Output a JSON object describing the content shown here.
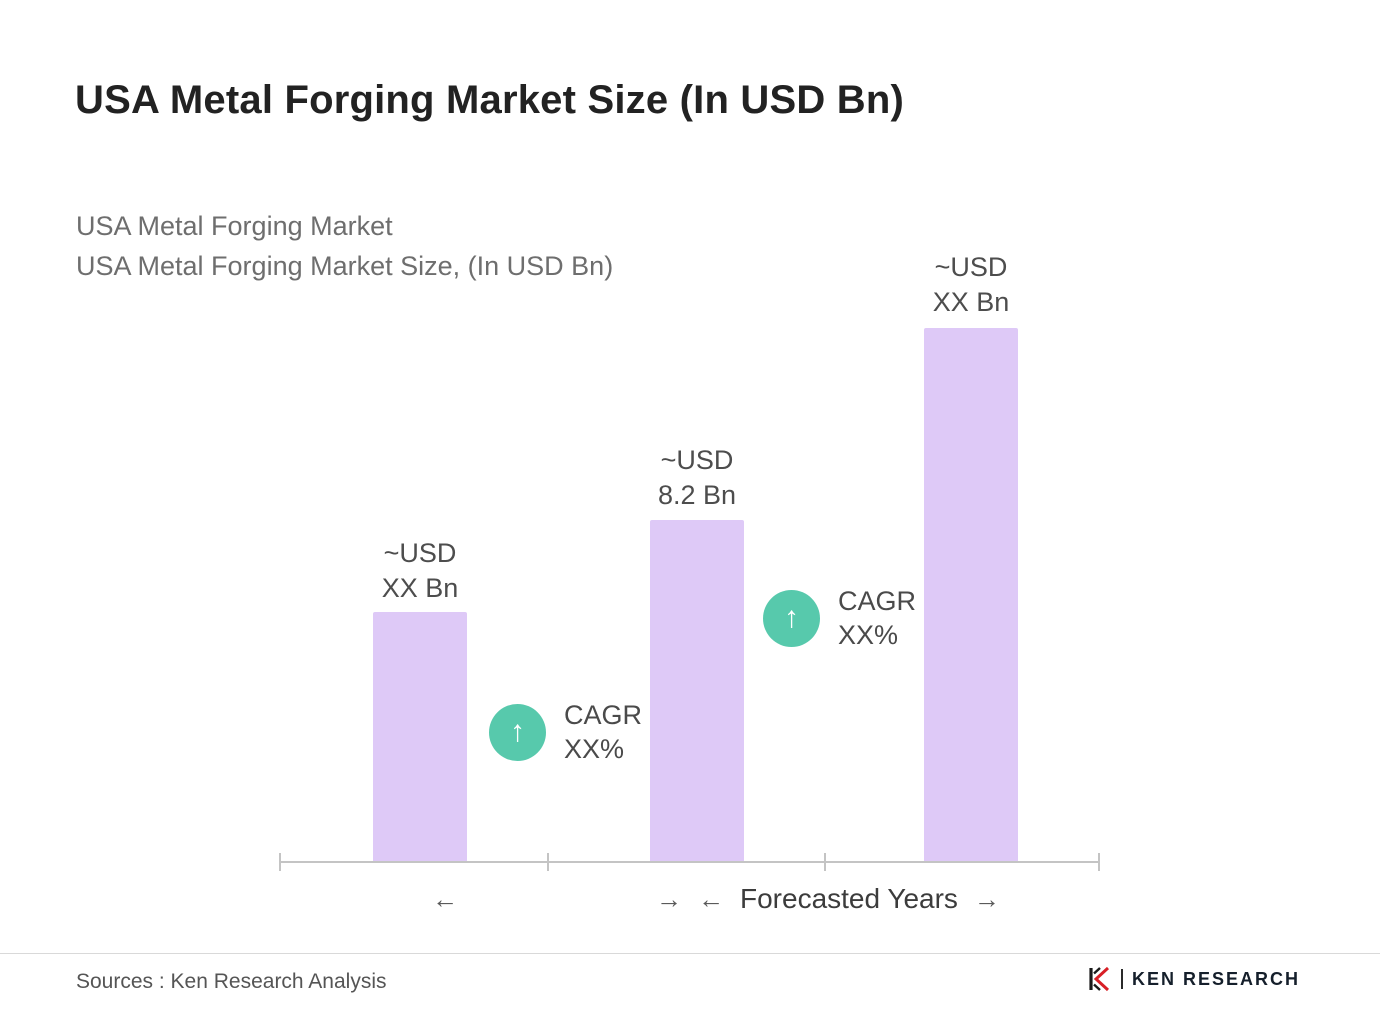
{
  "title": "USA Metal Forging Market Size (In USD Bn)",
  "subtitle": {
    "line1": "USA Metal Forging Market",
    "line2": "USA Metal Forging Market Size, (In USD Bn)"
  },
  "chart_data": {
    "type": "bar",
    "title": "USA Metal Forging Market Size (In USD Bn)",
    "values": [
      6.0,
      8.2,
      12.8
    ],
    "ylim": [
      0,
      14
    ],
    "grid": false,
    "bar_color": "#DEC9F7",
    "bars": [
      {
        "label_line1": "~USD",
        "label_line2": "XX Bn",
        "value": 6.0
      },
      {
        "label_line1": "~USD",
        "label_line2": "8.2 Bn",
        "value": 8.2
      },
      {
        "label_line1": "~USD",
        "label_line2": "XX Bn",
        "value": 12.8
      }
    ],
    "cagr_annotations": [
      {
        "line1": "CAGR",
        "line2": "XX%"
      },
      {
        "line1": "CAGR",
        "line2": "XX%"
      }
    ],
    "axis_annotation": "Forecasted Years",
    "legend": "none"
  },
  "icons": {
    "arrow_up": "↑",
    "arrow_left": "←",
    "arrow_right": "→"
  },
  "footer": {
    "sources": "Sources : Ken Research Analysis",
    "logo_text": "KEN RESEARCH"
  },
  "colors": {
    "bar": "#DEC9F7",
    "cagr_circle": "#57C9AC",
    "title": "#222222",
    "subtitle": "#6E6E6E",
    "axis": "#C4C4C4",
    "logo_red": "#D81F26"
  }
}
